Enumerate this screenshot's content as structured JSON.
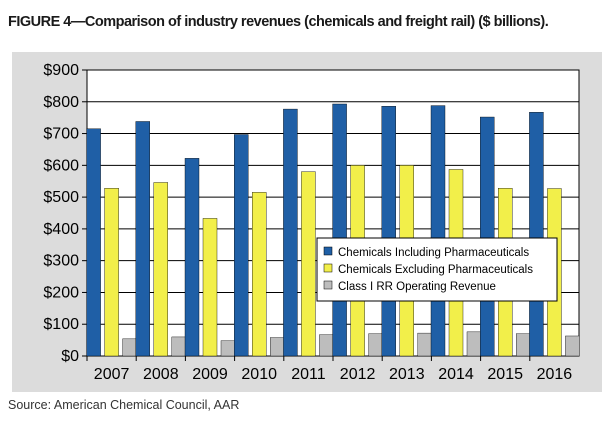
{
  "figure": {
    "title": "FIGURE 4—Comparison of industry revenues (chemicals and freight rail) ($ billions).",
    "source": "Source: American Chemical Council, AAR"
  },
  "chart_data": {
    "type": "bar",
    "title": "",
    "xlabel": "",
    "ylabel": "",
    "ylim": [
      0,
      900
    ],
    "yticks": [
      "$0",
      "$100",
      "$200",
      "$300",
      "$400",
      "$500",
      "$600",
      "$700",
      "$800",
      "$900"
    ],
    "categories": [
      "2007",
      "2008",
      "2009",
      "2010",
      "2011",
      "2012",
      "2013",
      "2014",
      "2015",
      "2016"
    ],
    "grid": true,
    "legend_position": "center-right",
    "series": [
      {
        "name": "Chemicals Including Pharmaceuticals",
        "color": "#1f5fa6",
        "values": [
          715,
          738,
          622,
          697,
          777,
          793,
          786,
          788,
          752,
          767
        ]
      },
      {
        "name": "Chemicals Excluding Pharmaceuticals",
        "color": "#f2ef4a",
        "values": [
          528,
          546,
          433,
          515,
          580,
          600,
          600,
          587,
          528,
          527
        ]
      },
      {
        "name": "Class I RR Operating Revenue",
        "color": "#bdbdbd",
        "values": [
          54,
          60,
          48,
          58,
          67,
          70,
          72,
          76,
          70,
          63
        ]
      }
    ]
  }
}
